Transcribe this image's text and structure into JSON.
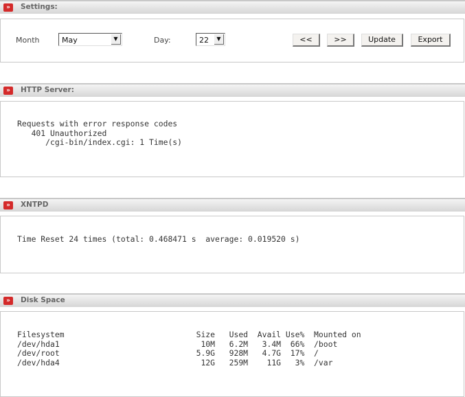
{
  "settings": {
    "title": "Settings:",
    "month_label": "Month",
    "month_value": "May",
    "day_label": "Day:",
    "day_value": "22",
    "prev_label": "<<",
    "next_label": ">>",
    "update_label": "Update",
    "export_label": "Export"
  },
  "http": {
    "title": "HTTP Server:",
    "lines": [
      "Requests with error response codes",
      "   401 Unauthorized",
      "      /cgi-bin/index.cgi: 1 Time(s)"
    ]
  },
  "xntpd": {
    "title": "XNTPD",
    "lines": [
      "Time Reset 24 times (total: 0.468471 s  average: 0.019520 s)"
    ]
  },
  "disk": {
    "title": "Disk Space",
    "columns": [
      "Filesystem",
      "Size",
      "Used",
      "Avail",
      "Use%",
      "Mounted on"
    ],
    "rows": [
      [
        "/dev/hda1",
        "10M",
        "6.2M",
        "3.4M",
        "66%",
        "/boot"
      ],
      [
        "/dev/root",
        "5.9G",
        "928M",
        "4.7G",
        "17%",
        "/"
      ],
      [
        "/dev/hda4",
        "12G",
        "259M",
        "11G",
        "3%",
        "/var"
      ]
    ]
  }
}
